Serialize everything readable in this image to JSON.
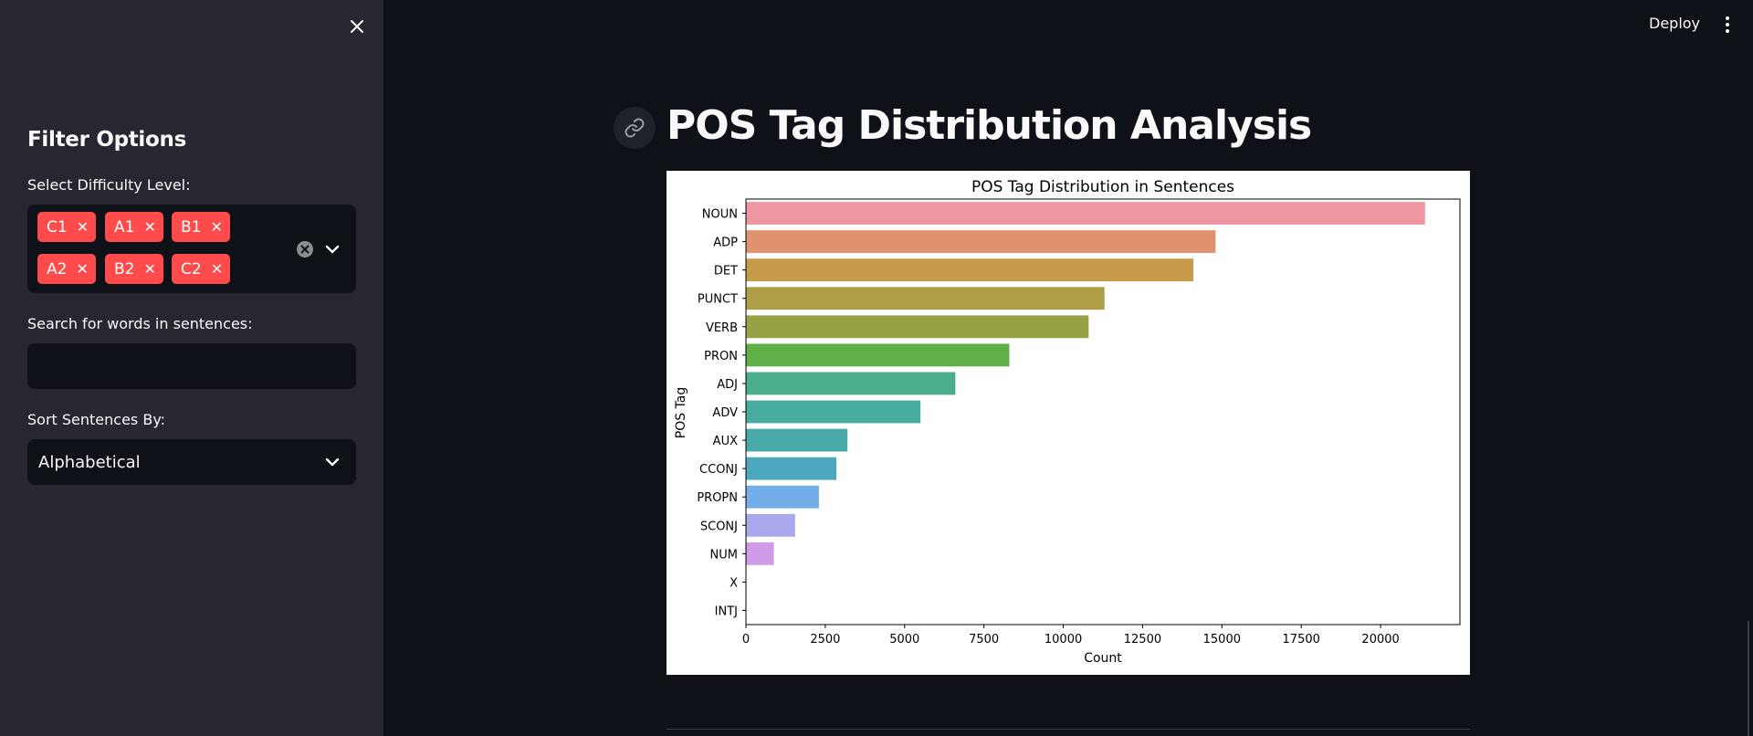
{
  "sidebar": {
    "heading": "Filter Options",
    "difficulty_label": "Select Difficulty Level:",
    "difficulty_tags": [
      "C1",
      "A1",
      "B1",
      "A2",
      "B2",
      "C2"
    ],
    "search_label": "Search for words in sentences:",
    "search_value": "",
    "sort_label": "Sort Sentences By:",
    "sort_selected": "Alphabetical",
    "tag_color": "#ff4b4b"
  },
  "topbar": {
    "deploy_label": "Deploy"
  },
  "main": {
    "title": "POS Tag Distribution Analysis"
  },
  "chart_data": {
    "type": "bar",
    "orientation": "horizontal",
    "title": "POS Tag Distribution in Sentences",
    "xlabel": "Count",
    "ylabel": "POS Tag",
    "xlim": [
      0,
      22500
    ],
    "xticks": [
      0,
      2500,
      5000,
      7500,
      10000,
      12500,
      15000,
      17500,
      20000
    ],
    "grid": false,
    "categories": [
      "NOUN",
      "ADP",
      "DET",
      "PUNCT",
      "VERB",
      "PRON",
      "ADJ",
      "ADV",
      "AUX",
      "CCONJ",
      "PROPN",
      "SCONJ",
      "NUM",
      "X",
      "INTJ"
    ],
    "values": [
      21400,
      14800,
      14100,
      11300,
      10800,
      8300,
      6600,
      5500,
      3200,
      2850,
      2300,
      1550,
      880,
      0,
      0
    ],
    "colors": [
      "#ed96a2",
      "#e0926f",
      "#c69a48",
      "#ae9e46",
      "#96a244",
      "#5fb049",
      "#4aae8d",
      "#47aba0",
      "#49a9a9",
      "#4ca8bf",
      "#74aee9",
      "#aaa8ec",
      "#d19be9",
      "#e58ecd",
      "#ea8fb8"
    ]
  }
}
